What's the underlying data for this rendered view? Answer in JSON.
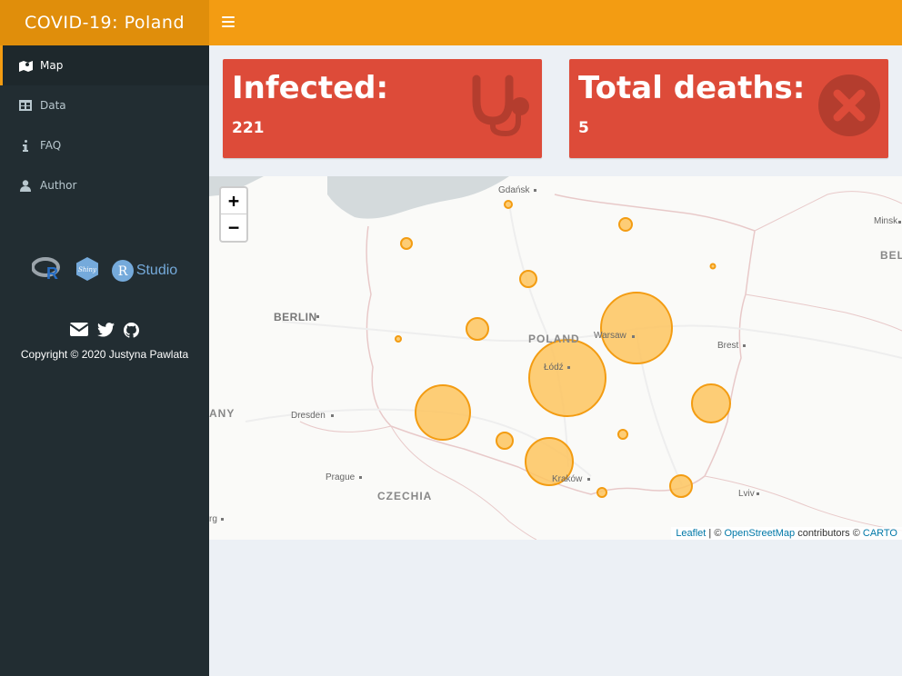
{
  "app": {
    "title": "COVID-19: Poland"
  },
  "navbar": {
    "toggle_icon": "bars-icon"
  },
  "sidebar": {
    "items": [
      {
        "label": "Map",
        "icon": "map-icon",
        "active": true
      },
      {
        "label": "Data",
        "icon": "table-icon",
        "active": false
      },
      {
        "label": "FAQ",
        "icon": "info-icon",
        "active": false
      },
      {
        "label": "Author",
        "icon": "user-icon",
        "active": false
      }
    ],
    "logos": {
      "rstudio": "Studio"
    },
    "copyright": "Copyright © 2020 Justyna Pawlata"
  },
  "boxes": {
    "infected": {
      "title": "Infected:",
      "value": "221",
      "icon": "stethoscope-icon"
    },
    "deaths": {
      "title": "Total deaths:",
      "value": "5",
      "icon": "times-circle-icon"
    }
  },
  "colors": {
    "header": "#f39c12",
    "logo": "#e08e0b",
    "sidebar": "#222d32",
    "box": "#dd4b39",
    "marker_fill": "#fdc45f",
    "marker_stroke": "#f39c12"
  },
  "map": {
    "zoom_in": "+",
    "zoom_out": "−",
    "labels": {
      "gdansk": "Gdańsk",
      "minsk": "Minsk",
      "bel": "BEL",
      "berlin": "BERLIN",
      "poland": "POLAND",
      "warsaw": "Warsaw",
      "lodz": "Łódź",
      "brest": "Brest",
      "dresden": "Dresden",
      "any": "ANY",
      "prague": "Prague",
      "czechia": "CZECHIA",
      "krakow": "Kraków",
      "lviv": "Lviv",
      "rg": "rg"
    },
    "attribution": {
      "leaflet": "Leaflet",
      "sep": " | © ",
      "osm": "OpenStreetMap",
      "contrib": " contributors © ",
      "carto": "CARTO"
    }
  }
}
